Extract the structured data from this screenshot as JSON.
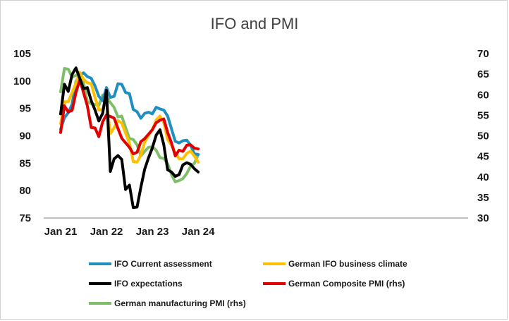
{
  "chart_data": {
    "type": "line",
    "title": "IFO and PMI",
    "x": [
      "2021-01",
      "2021-02",
      "2021-03",
      "2021-04",
      "2021-05",
      "2021-06",
      "2021-07",
      "2021-08",
      "2021-09",
      "2021-10",
      "2021-11",
      "2021-12",
      "2022-01",
      "2022-02",
      "2022-03",
      "2022-04",
      "2022-05",
      "2022-06",
      "2022-07",
      "2022-08",
      "2022-09",
      "2022-10",
      "2022-11",
      "2022-12",
      "2023-01",
      "2023-02",
      "2023-03",
      "2023-04",
      "2023-05",
      "2023-06",
      "2023-07",
      "2023-08",
      "2023-09",
      "2023-10",
      "2023-11",
      "2023-12",
      "2024-01"
    ],
    "x_tick_labels": [
      "Jan 21",
      "Jan 22",
      "Jan 23",
      "Jan 24"
    ],
    "left_axis": {
      "ylim": [
        75,
        105
      ],
      "ticks": [
        "75",
        "80",
        "85",
        "90",
        "95",
        "100",
        "105"
      ]
    },
    "right_axis": {
      "ylim": [
        30,
        70
      ],
      "ticks": [
        "30",
        "35",
        "40",
        "45",
        "50",
        "55",
        "60",
        "65",
        "70"
      ]
    },
    "grid": false,
    "legend_placement": "bottom",
    "series": [
      {
        "name": "IFO Current assessment",
        "axis": "left",
        "color": "#1f8fbf",
        "values": [
          91.2,
          93.3,
          94.2,
          95.8,
          99.9,
          101.1,
          101.5,
          100.8,
          100.5,
          99.1,
          97.2,
          96.4,
          98.8,
          97.0,
          97.2,
          99.5,
          99.4,
          97.9,
          97.7,
          94.8,
          94.4,
          93.2,
          94.1,
          94.3,
          94.0,
          95.2,
          94.9,
          94.7,
          93.6,
          91.3,
          89.0,
          88.7,
          89.1,
          89.2,
          88.3,
          86.7,
          86.6
        ]
      },
      {
        "name": "German IFO business climate",
        "axis": "left",
        "color": "#ffc000",
        "values": [
          92.2,
          96.2,
          96.2,
          97.9,
          99.6,
          101.6,
          100.3,
          99.7,
          99.5,
          97.0,
          94.7,
          94.8,
          96.4,
          90.4,
          91.5,
          92.8,
          92.3,
          90.5,
          88.7,
          85.3,
          85.2,
          86.5,
          88.8,
          90.1,
          91.1,
          92.9,
          93.6,
          92.4,
          89.3,
          88.3,
          86.9,
          85.8,
          85.8,
          86.8,
          87.2,
          86.3,
          85.2
        ]
      },
      {
        "name": "IFO expectations",
        "axis": "left",
        "color": "#000000",
        "values": [
          94.0,
          99.4,
          98.1,
          101.2,
          102.4,
          100.5,
          98.6,
          98.8,
          96.4,
          94.7,
          92.7,
          94.1,
          98.3,
          83.5,
          85.8,
          86.4,
          85.7,
          80.2,
          81.0,
          76.9,
          77.0,
          80.6,
          83.9,
          86.0,
          87.8,
          90.1,
          91.1,
          88.4,
          83.8,
          83.4,
          82.6,
          82.9,
          84.7,
          85.1,
          84.8,
          84.0,
          83.4
        ]
      },
      {
        "name": "German Composite PMI (rhs)",
        "axis": "right",
        "color": "#e00000",
        "values": [
          50.8,
          57.3,
          55.8,
          56.2,
          60.5,
          63.6,
          60.5,
          57.3,
          52.0,
          51.9,
          49.8,
          53.4,
          55.1,
          54.7,
          54.3,
          51.8,
          49.4,
          48.3,
          47.2,
          45.6,
          46.0,
          48.6,
          49.3,
          50.4,
          51.5,
          53.2,
          53.8,
          54.1,
          50.8,
          48.3,
          45.1,
          46.5,
          46.2,
          47.7,
          47.8,
          47.0,
          46.8
        ]
      },
      {
        "name": "German manufacturing PMI (rhs)",
        "axis": "right",
        "color": "#7fbf6a",
        "values": [
          60.7,
          66.4,
          66.2,
          64.3,
          64.7,
          65.1,
          62.9,
          58.3,
          57.8,
          57.6,
          57.4,
          59.9,
          59.4,
          58.1,
          56.9,
          54.6,
          54.8,
          52.0,
          49.3,
          49.1,
          47.8,
          45.1,
          46.2,
          47.2,
          47.3,
          46.5,
          44.7,
          44.5,
          43.2,
          40.6,
          38.8,
          39.1,
          39.6,
          40.8,
          42.6,
          43.3,
          45.4
        ]
      }
    ]
  }
}
